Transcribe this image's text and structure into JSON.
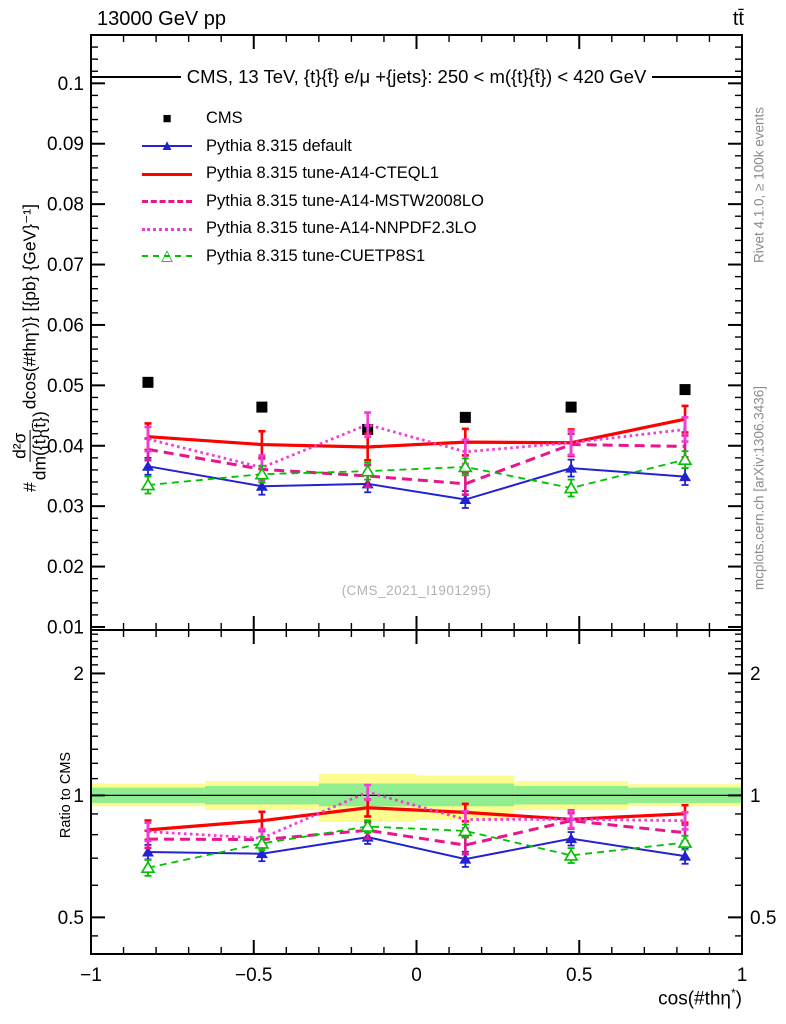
{
  "header": {
    "left": "13000 GeV pp",
    "right": "tt̄"
  },
  "panel_title": "CMS, 13 TeV, {t}{t̄} e/μ +{jets}: 250 < m({t}{t̄}) < 420 GeV",
  "watermark": "(CMS_2021_I1901295)",
  "right_captions": {
    "top": "Rivet 4.1.0, ≥ 100k events",
    "bottom": "mcplots.cern.ch [arXiv:1306.3436]"
  },
  "axes": {
    "y_title": {
      "hash": "#",
      "num": "d²σ",
      "den": "dm({t}{t̄})",
      "mid": " dcos(#thη",
      "sup": "*",
      "tail": ")} [{pb} {GeV}⁻¹]"
    },
    "ratio_y_title": "Ratio to CMS",
    "x_title_prefix": "cos(#thη",
    "x_title_sup": "*",
    "x_title_suffix": ")"
  },
  "legend": [
    {
      "label": "CMS",
      "sample": {
        "line": "none",
        "width": 0,
        "color": "#000000",
        "marker": "■",
        "marker_color": "#000000"
      }
    },
    {
      "label": "Pythia 8.315 default",
      "sample": {
        "line": "solid",
        "width": 2,
        "color": "#2222d2",
        "marker": "▲",
        "marker_color": "#2222d2"
      }
    },
    {
      "label": "Pythia 8.315 tune-A14-CTEQL1",
      "sample": {
        "line": "solid",
        "width": 3,
        "color": "#ff0000",
        "marker": "",
        "marker_color": "#ff0000"
      }
    },
    {
      "label": "Pythia 8.315 tune-A14-MSTW2008LO",
      "sample": {
        "line": "dashed",
        "width": 3,
        "color": "#e8158b",
        "marker": "",
        "marker_color": "#e8158b"
      }
    },
    {
      "label": "Pythia 8.315 tune-A14-NNPDF2.3LO",
      "sample": {
        "line": "dotted",
        "width": 3,
        "color": "#f13dd7",
        "marker": "",
        "marker_color": "#f13dd7"
      }
    },
    {
      "label": "Pythia 8.315 tune-CUETP8S1",
      "sample": {
        "line": "dashed",
        "width": 2,
        "color": "#00c000",
        "marker": "△",
        "marker_color": "#00c000"
      }
    }
  ],
  "chart_data": {
    "type": "line",
    "title": "CMS, 13 TeV, {t}{t̄} e/μ +{jets}: 250 < m({t}{t̄}) < 420 GeV",
    "xlabel": "cos(#thη*)",
    "ylabel": "#d²σ/dm({t}{t̄}) dcos(#thη*)} [{pb} {GeV}⁻¹]",
    "x": [
      -0.825,
      -0.475,
      -0.15,
      0.15,
      0.475,
      0.825
    ],
    "bin_edges": [
      -1,
      -0.65,
      -0.3,
      0,
      0.3,
      0.65,
      1
    ],
    "xlim": [
      -1,
      1
    ],
    "x_major_ticks": [
      -1,
      -0.5,
      0,
      0.5,
      1
    ],
    "x_tick_labels": [
      "−1",
      "−0.5",
      "0",
      "0.5",
      "1"
    ],
    "x_minor_step": 0.1,
    "main": {
      "ylim": [
        0.0095,
        0.108
      ],
      "scale": "linear",
      "ytick_values": [
        0.1,
        0.09,
        0.08,
        0.07,
        0.06,
        0.05,
        0.04,
        0.03,
        0.02,
        0.01
      ],
      "ytick_labels": [
        "0.1",
        "0.09",
        "0.08",
        "0.07",
        "0.06",
        "0.05",
        "0.04",
        "0.03",
        "0.02",
        "0.01"
      ],
      "y_minor_step": 0.002
    },
    "ratio": {
      "ylim": [
        0.406,
        2.56
      ],
      "scale": "log",
      "ytick_values": [
        2,
        1,
        0.5
      ],
      "ytick_labels": [
        "2",
        "1",
        "0.5"
      ],
      "y_minor_ticks": [
        0.45,
        0.6,
        0.7,
        0.8,
        0.9,
        1.1,
        1.2,
        1.3,
        1.4,
        1.5,
        1.6,
        1.7,
        1.8,
        1.9,
        2.1,
        2.2,
        2.3,
        2.4,
        2.5
      ],
      "reference_line": 1,
      "bands": {
        "yellow_color": "#fcfc8f",
        "green_color": "#90ee90",
        "yellow": [
          [
            0.94,
            1.07
          ],
          [
            0.92,
            1.085
          ],
          [
            0.86,
            1.13
          ],
          [
            0.87,
            1.12
          ],
          [
            0.92,
            1.085
          ],
          [
            0.94,
            1.065
          ]
        ],
        "green": [
          [
            0.958,
            1.045
          ],
          [
            0.95,
            1.055
          ],
          [
            0.94,
            1.07
          ],
          [
            0.94,
            1.07
          ],
          [
            0.95,
            1.055
          ],
          [
            0.958,
            1.045
          ]
        ]
      }
    },
    "cms": {
      "name": "CMS",
      "color": "#000000",
      "marker": "square",
      "values": [
        0.0505,
        0.0464,
        0.0427,
        0.0447,
        0.0464,
        0.0493
      ]
    },
    "series": [
      {
        "key": "pythia-default",
        "name": "Pythia 8.315 default",
        "color": "#2222d2",
        "line": "solid",
        "width": 2,
        "marker": "triangle-filled",
        "values": [
          0.0366,
          0.0333,
          0.0337,
          0.0311,
          0.0363,
          0.0349
        ],
        "errors": 0.0014,
        "ratio": [
          0.725,
          0.718,
          0.789,
          0.696,
          0.782,
          0.708
        ],
        "ratio_errors": 0.03
      },
      {
        "key": "a14-cteql1",
        "name": "Pythia 8.315 tune-A14-CTEQL1",
        "color": "#ff0000",
        "line": "solid",
        "width": 3.2,
        "marker": "none",
        "values": [
          0.0415,
          0.0402,
          0.0398,
          0.0406,
          0.0405,
          0.0444
        ],
        "errors": 0.0022,
        "ratio": [
          0.822,
          0.866,
          0.932,
          0.908,
          0.873,
          0.901
        ],
        "ratio_errors": 0.045
      },
      {
        "key": "a14-mstw2008lo",
        "name": "Pythia 8.315 tune-A14-MSTW2008LO",
        "color": "#e8158b",
        "line": "dashed",
        "width": 3,
        "marker": "none",
        "values": [
          0.0394,
          0.0361,
          0.035,
          0.0337,
          0.0402,
          0.0399
        ],
        "errors": 0.0018,
        "ratio": [
          0.78,
          0.778,
          0.82,
          0.754,
          0.866,
          0.809
        ],
        "ratio_errors": 0.038
      },
      {
        "key": "a14-nnpdf23lo",
        "name": "Pythia 8.315 tune-A14-NNPDF2.3LO",
        "color": "#f13dd7",
        "line": "dotted",
        "width": 2.8,
        "marker": "none",
        "values": [
          0.0411,
          0.0364,
          0.0435,
          0.039,
          0.0405,
          0.0427
        ],
        "errors": 0.002,
        "ratio": [
          0.814,
          0.784,
          1.019,
          0.872,
          0.873,
          0.866
        ],
        "ratio_errors": 0.042
      },
      {
        "key": "cuetp8s1",
        "name": "Pythia 8.315 tune-CUETP8S1",
        "color": "#00c000",
        "line": "dashed-fine",
        "width": 1.8,
        "marker": "triangle-open",
        "values": [
          0.0335,
          0.0353,
          0.0358,
          0.0365,
          0.033,
          0.0377
        ],
        "errors": 0.0014,
        "ratio": [
          0.663,
          0.761,
          0.838,
          0.817,
          0.711,
          0.765
        ],
        "ratio_errors": 0.03
      }
    ]
  }
}
